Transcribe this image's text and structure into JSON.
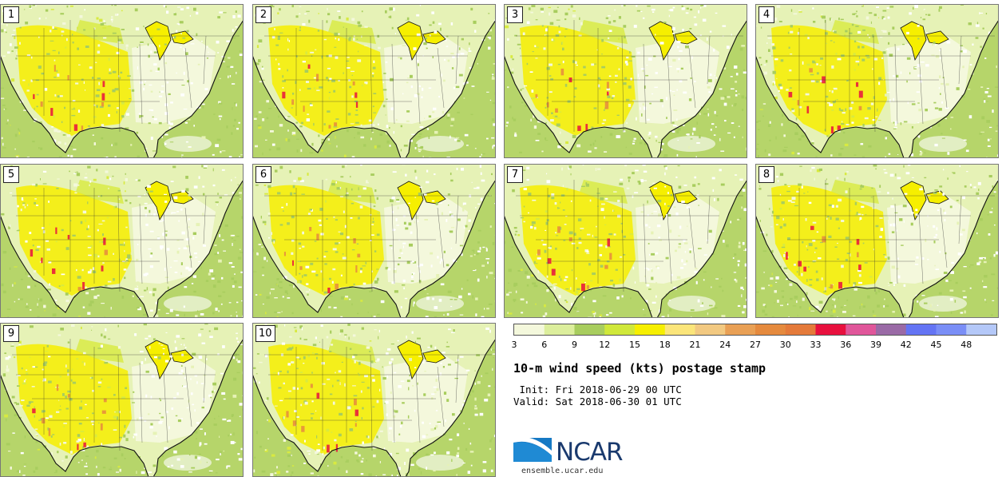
{
  "panels": [
    {
      "label": "1"
    },
    {
      "label": "2"
    },
    {
      "label": "3"
    },
    {
      "label": "4"
    },
    {
      "label": "5"
    },
    {
      "label": "6"
    },
    {
      "label": "7"
    },
    {
      "label": "8"
    },
    {
      "label": "9"
    },
    {
      "label": "10"
    }
  ],
  "colorbar": {
    "ticks": [
      "3",
      "6",
      "9",
      "12",
      "15",
      "18",
      "21",
      "24",
      "27",
      "30",
      "33",
      "36",
      "39",
      "42",
      "45",
      "48"
    ],
    "colors": [
      "#f4f8dc",
      "#dcee9c",
      "#a8cd5e",
      "#d0e83a",
      "#f6ef00",
      "#fbe57a",
      "#f2c981",
      "#e9a055",
      "#e58a3e",
      "#e47a3a",
      "#e8103e",
      "#e0569a",
      "#9a6aa6",
      "#6474f4",
      "#7a8ef6",
      "#b4c8f8"
    ]
  },
  "map_colors": {
    "land_light": "#f4f8dc",
    "land_pale": "#e6f2b6",
    "green": "#a8cd5e",
    "yellow": "#f6ef00",
    "yellow_green": "#d8ea40",
    "orange": "#e58a3e",
    "red": "#e8103e"
  },
  "text": {
    "title": "10-m wind speed (kts) postage stamp",
    "init": " Init: Fri 2018-06-29 00 UTC",
    "valid": "Valid: Sat 2018-06-30 01 UTC",
    "logo": "NCAR",
    "url": "ensemble.ucar.edu"
  }
}
